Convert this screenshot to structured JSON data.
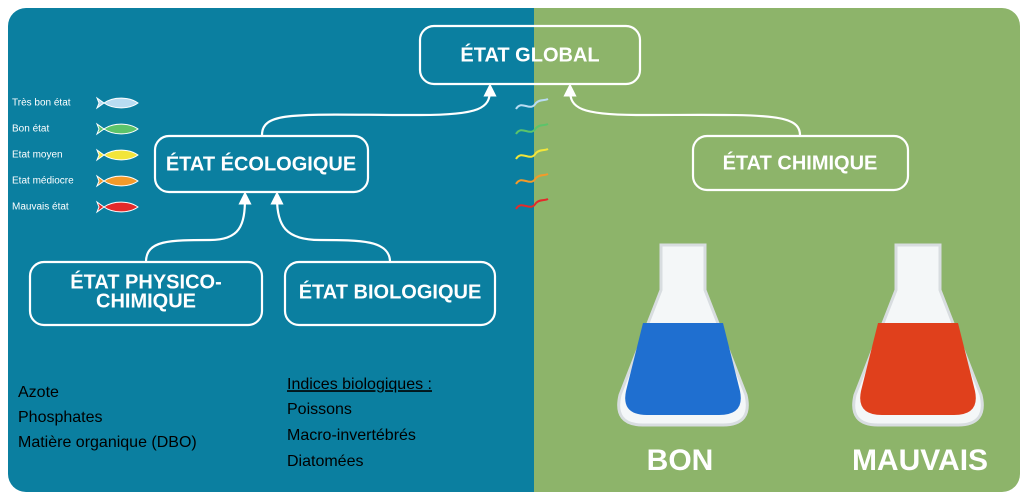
{
  "nodes": [
    {
      "label": "ÉTAT GLOBAL"
    },
    {
      "label": "ÉTAT ÉCOLOGIQUE"
    },
    {
      "label": "ÉTAT CHIMIQUE"
    },
    {
      "lines": [
        "ÉTAT PHYSICO-",
        "CHIMIQUE"
      ]
    },
    {
      "label": "ÉTAT BIOLOGIQUE"
    }
  ],
  "legend": [
    {
      "label": "Très bon état",
      "color": "#b9dcf2"
    },
    {
      "label": "Bon état",
      "color": "#5cc46a"
    },
    {
      "label": "Etat moyen",
      "color": "#f2e53a"
    },
    {
      "label": "Etat médiocre",
      "color": "#f39a2a"
    },
    {
      "label": "Mauvais état",
      "color": "#e52a2a"
    }
  ],
  "physico_list": [
    "Azote",
    "Phosphates",
    "Matière organique (DBO)"
  ],
  "bio_heading": "Indices biologiques :",
  "bio_list": [
    "Poissons",
    "Macro-invertébrés",
    "Diatomées"
  ],
  "flasks": [
    {
      "label": "BON",
      "color": "#1f6fd0"
    },
    {
      "label": "MAUVAIS",
      "color": "#e0401c"
    }
  ]
}
